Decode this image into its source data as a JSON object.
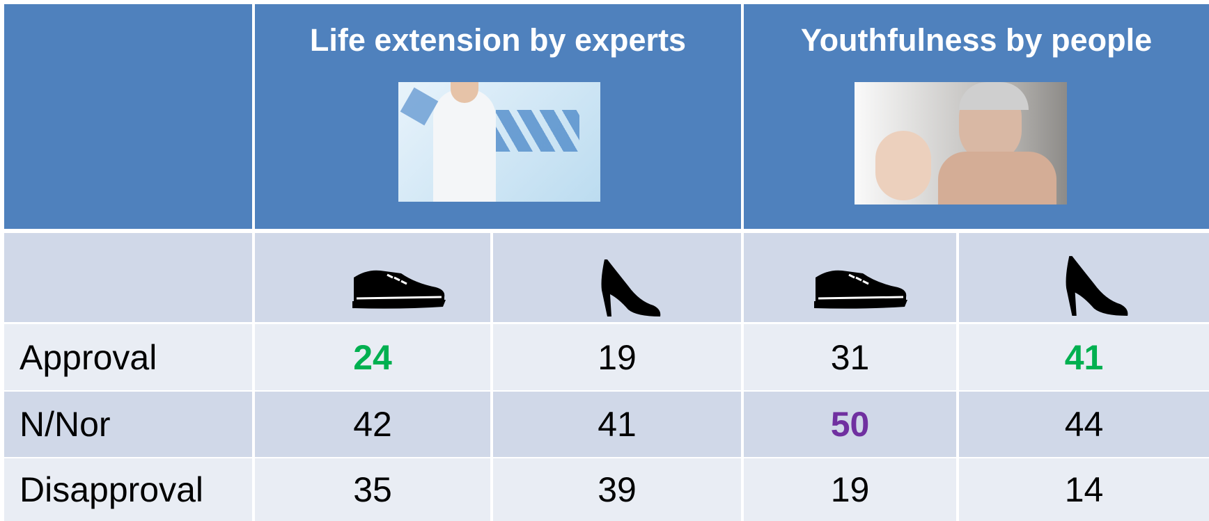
{
  "header": {
    "columns": [
      {
        "title": "Life extension by experts"
      },
      {
        "title": "Youthfulness by people"
      }
    ]
  },
  "table": {
    "rows": [
      {
        "label": "Approval",
        "values": [
          24,
          19,
          31,
          41
        ],
        "colors": [
          "#00b050",
          "#000000",
          "#000000",
          "#00b050"
        ],
        "bold": [
          true,
          false,
          false,
          true
        ]
      },
      {
        "label": "N/Nor",
        "values": [
          42,
          41,
          50,
          44
        ],
        "colors": [
          "#000000",
          "#000000",
          "#7030a0",
          "#000000"
        ],
        "bold": [
          false,
          false,
          true,
          false
        ]
      },
      {
        "label": "Disapproval",
        "values": [
          35,
          39,
          19,
          14
        ],
        "colors": [
          "#000000",
          "#000000",
          "#000000",
          "#000000"
        ],
        "bold": [
          false,
          false,
          false,
          false
        ]
      }
    ]
  }
}
